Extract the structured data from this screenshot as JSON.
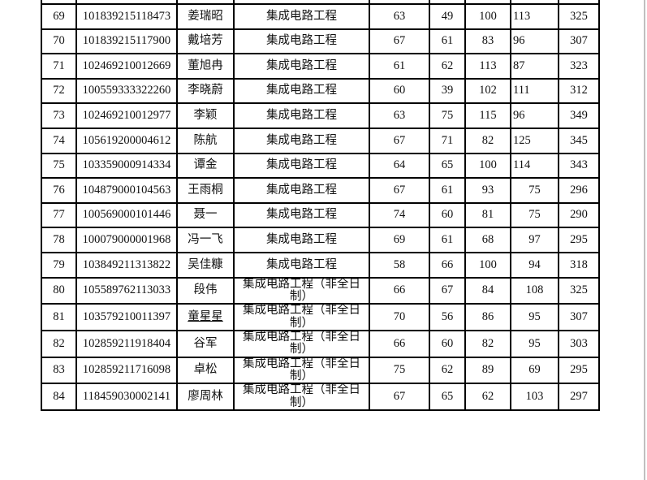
{
  "page": {
    "table_border_color": "#000000",
    "right_edge_line_color": "#c0c0c0"
  },
  "table": {
    "rows": [
      {
        "no": "69",
        "id": "101839215118473",
        "name": "姜瑞昭",
        "program": "集成电路工程",
        "s1": "63",
        "s2": "49",
        "s3": "100",
        "s4": "113",
        "total": "325",
        "name_underlined": false
      },
      {
        "no": "70",
        "id": "101839215117900",
        "name": "戴培芳",
        "program": "集成电路工程",
        "s1": "67",
        "s2": "61",
        "s3": "83",
        "s4": "96",
        "total": "307",
        "name_underlined": false
      },
      {
        "no": "71",
        "id": "102469210012669",
        "name": "董旭冉",
        "program": "集成电路工程",
        "s1": "61",
        "s2": "62",
        "s3": "113",
        "s4": "87",
        "total": "323",
        "name_underlined": false
      },
      {
        "no": "72",
        "id": "100559333322260",
        "name": "李晓蔚",
        "program": "集成电路工程",
        "s1": "60",
        "s2": "39",
        "s3": "102",
        "s4": "111",
        "total": "312",
        "name_underlined": false
      },
      {
        "no": "73",
        "id": "102469210012977",
        "name": "李颖",
        "program": "集成电路工程",
        "s1": "63",
        "s2": "75",
        "s3": "115",
        "s4": "96",
        "total": "349",
        "name_underlined": false
      },
      {
        "no": "74",
        "id": "105619200004612",
        "name": "陈航",
        "program": "集成电路工程",
        "s1": "67",
        "s2": "71",
        "s3": "82",
        "s4": "125",
        "total": "345",
        "name_underlined": false
      },
      {
        "no": "75",
        "id": "103359000914334",
        "name": "谭金",
        "program": "集成电路工程",
        "s1": "64",
        "s2": "65",
        "s3": "100",
        "s4": "114",
        "total": "343",
        "name_underlined": false
      },
      {
        "no": "76",
        "id": "104879000104563",
        "name": "王雨桐",
        "program": "集成电路工程",
        "s1": "67",
        "s2": "61",
        "s3": "93",
        "s4": "75",
        "total": "296",
        "name_underlined": false
      },
      {
        "no": "77",
        "id": "100569000101446",
        "name": "聂一",
        "program": "集成电路工程",
        "s1": "74",
        "s2": "60",
        "s3": "81",
        "s4": "75",
        "total": "290",
        "name_underlined": false
      },
      {
        "no": "78",
        "id": "100079000001968",
        "name": "冯一飞",
        "program": "集成电路工程",
        "s1": "69",
        "s2": "61",
        "s3": "68",
        "s4": "97",
        "total": "295",
        "name_underlined": false
      },
      {
        "no": "79",
        "id": "103849211313822",
        "name": "吴佳糠",
        "program": "集成电路工程",
        "s1": "58",
        "s2": "66",
        "s3": "100",
        "s4": "94",
        "total": "318",
        "name_underlined": false
      },
      {
        "no": "80",
        "id": "105589762113033",
        "name": "段伟",
        "program": "集成电路工程（非全日制）",
        "s1": "66",
        "s2": "67",
        "s3": "84",
        "s4": "108",
        "total": "325",
        "name_underlined": false
      },
      {
        "no": "81",
        "id": "103579210011397",
        "name": "童星星",
        "program": "集成电路工程（非全日制）",
        "s1": "70",
        "s2": "56",
        "s3": "86",
        "s4": "95",
        "total": "307",
        "name_underlined": true
      },
      {
        "no": "82",
        "id": "102859211918404",
        "name": "谷军",
        "program": "集成电路工程（非全日制）",
        "s1": "66",
        "s2": "60",
        "s3": "82",
        "s4": "95",
        "total": "303",
        "name_underlined": false
      },
      {
        "no": "83",
        "id": "102859211716098",
        "name": "卓松",
        "program": "集成电路工程（非全日制）",
        "s1": "75",
        "s2": "62",
        "s3": "89",
        "s4": "69",
        "total": "295",
        "name_underlined": false
      },
      {
        "no": "84",
        "id": "118459030002141",
        "name": "廖周林",
        "program": "集成电路工程（非全日制）",
        "s1": "67",
        "s2": "65",
        "s3": "62",
        "s4": "103",
        "total": "297",
        "name_underlined": false
      }
    ]
  }
}
